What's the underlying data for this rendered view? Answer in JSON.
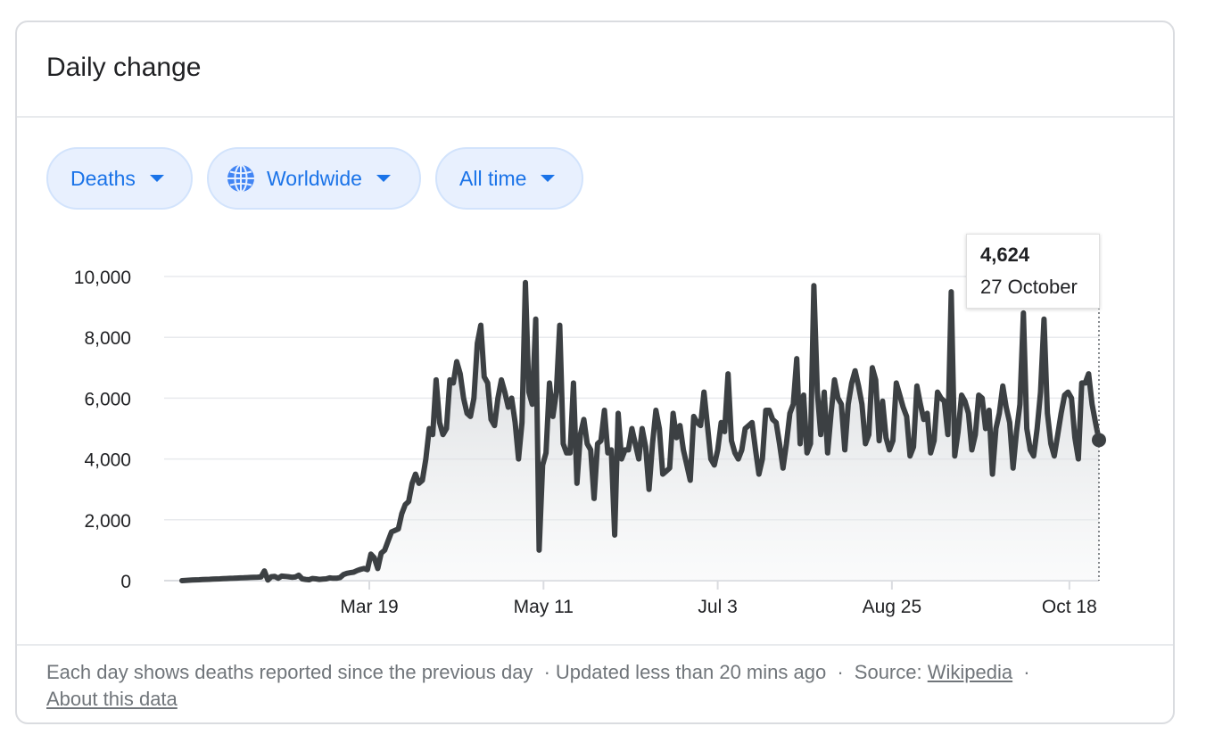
{
  "card": {
    "title": "Daily change"
  },
  "filters": {
    "metric": "Deaths",
    "region": "Worldwide",
    "range": "All time"
  },
  "tooltip": {
    "value": "4,624",
    "date": "27 October"
  },
  "footer": {
    "description": "Each day shows deaths reported since the previous day",
    "dot": "·",
    "updated": "Updated less than 20 mins ago",
    "source_label": "Source:",
    "source_link": "Wikipedia",
    "about_link": "About this data"
  },
  "colors": {
    "line": "#3c4043",
    "accent": "#1a73e8",
    "chip_bg": "#e8f0fe",
    "grid": "#e8eaed"
  },
  "chart_data": {
    "type": "area",
    "x_start": "2020-01-22",
    "x_end": "2020-10-27",
    "xtick_labels": [
      "Mar 19",
      "May 11",
      "Jul 3",
      "Aug 25",
      "Oct 18"
    ],
    "xtick_dates": [
      "2020-03-19",
      "2020-05-11",
      "2020-07-03",
      "2020-08-25",
      "2020-10-18"
    ],
    "ytick_labels": [
      "0",
      "2,000",
      "4,000",
      "6,000",
      "8,000",
      "10,000"
    ],
    "ytick_values": [
      0,
      2000,
      4000,
      6000,
      8000,
      10000
    ],
    "ylim": [
      0,
      10000
    ],
    "grid": true,
    "series": [
      {
        "values": [
          0,
          10,
          15,
          20,
          25,
          30,
          35,
          40,
          45,
          50,
          55,
          60,
          65,
          70,
          75,
          80,
          85,
          90,
          95,
          100,
          105,
          110,
          115,
          120,
          320,
          20,
          130,
          140,
          80,
          150,
          140,
          130,
          110,
          120,
          180,
          60,
          40,
          30,
          70,
          60,
          40,
          50,
          60,
          90,
          80,
          80,
          100,
          200,
          240,
          260,
          280,
          330,
          370,
          400,
          360,
          870,
          750,
          400,
          900,
          1000,
          1300,
          1600,
          1650,
          1700,
          2200,
          2500,
          2600,
          3200,
          3500,
          3200,
          3300,
          4000,
          5000,
          4800,
          6600,
          5200,
          4800,
          5000,
          6600,
          6500,
          7200,
          6800,
          6000,
          5500,
          5400,
          6000,
          7800,
          8400,
          6700,
          6500,
          5300,
          5100,
          6000,
          6600,
          6200,
          5700,
          6000,
          5200,
          4000,
          5200,
          9800,
          6200,
          5800,
          8600,
          1000,
          3800,
          4200,
          6500,
          5400,
          6200,
          8400,
          4500,
          4200,
          4200,
          6500,
          3200,
          4800,
          5300,
          4500,
          4300,
          2700,
          4500,
          4600,
          5600,
          4200,
          4300,
          1500,
          5500,
          4000,
          4300,
          4300,
          5000,
          4500,
          4000,
          5000,
          4400,
          3000,
          4500,
          5600,
          5000,
          3500,
          3600,
          3700,
          5500,
          4700,
          5100,
          4300,
          3800,
          3300,
          5400,
          5200,
          5100,
          6200,
          5100,
          4000,
          3800,
          4300,
          5200,
          4900,
          6800,
          4600,
          4200,
          4000,
          4300,
          5000,
          5100,
          5200,
          4300,
          3500,
          4000,
          5600,
          5600,
          5300,
          5200,
          4500,
          3700,
          4500,
          5500,
          5800,
          7300,
          4500,
          6100,
          4200,
          4500,
          9700,
          6200,
          4800,
          6200,
          4200,
          5500,
          6600,
          6000,
          5800,
          4300,
          5800,
          6500,
          6900,
          6400,
          5800,
          4500,
          4800,
          7000,
          6600,
          4600,
          5900,
          4700,
          4300,
          4600,
          6500,
          6100,
          5700,
          5400,
          4100,
          4400,
          6400,
          5800,
          5300,
          5500,
          4200,
          4600,
          6200,
          6000,
          5900,
          4800,
          9500,
          4100,
          4900,
          6100,
          5900,
          5500,
          4300,
          4800,
          6100,
          6000,
          5000,
          5600,
          3500,
          5000,
          5500,
          6400,
          5700,
          5200,
          3700,
          4900,
          5800,
          8800,
          5000,
          4300,
          4100,
          5000,
          6200,
          8600,
          5500,
          4500,
          4100,
          4800,
          5500,
          6100,
          6200,
          6000,
          4700,
          4000,
          6500,
          6500,
          6800,
          5800,
          5200,
          4624
        ]
      }
    ],
    "highlight": {
      "date": "2020-10-27",
      "value": 4624
    }
  }
}
